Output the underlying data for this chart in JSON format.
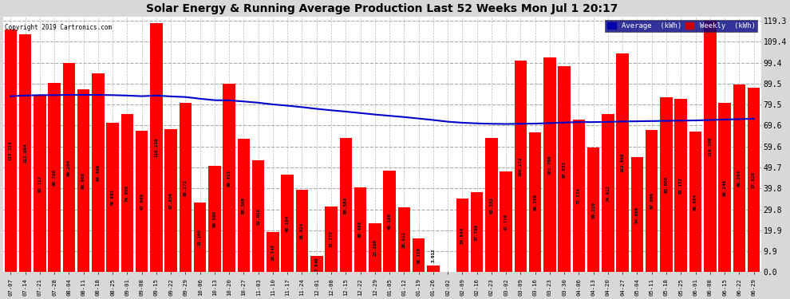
{
  "title": "Solar Energy & Running Average Production Last 52 Weeks Mon Jul 1 20:17",
  "copyright": "Copyright 2019 Cartronics.com",
  "background_color": "#d8d8d8",
  "plot_bg_color": "#ffffff",
  "bar_color": "#ff0000",
  "line_color": "#0000cc",
  "ylabel_right_values": [
    119.3,
    109.4,
    99.4,
    89.5,
    79.5,
    69.6,
    59.6,
    49.7,
    39.8,
    29.8,
    19.9,
    9.9,
    0.0
  ],
  "legend_avg_bg": "#0000aa",
  "legend_weekly_bg": "#cc0000",
  "categories": [
    "07-07",
    "07-14",
    "07-21",
    "07-28",
    "08-04",
    "08-11",
    "08-18",
    "08-25",
    "09-01",
    "09-08",
    "09-15",
    "09-22",
    "09-29",
    "10-06",
    "10-13",
    "10-20",
    "10-27",
    "11-03",
    "11-10",
    "11-17",
    "11-24",
    "12-01",
    "12-08",
    "12-15",
    "12-22",
    "12-29",
    "01-05",
    "01-12",
    "01-19",
    "01-26",
    "02-02",
    "02-09",
    "02-16",
    "02-23",
    "03-02",
    "03-09",
    "03-16",
    "03-23",
    "03-30",
    "04-06",
    "04-13",
    "04-20",
    "04-27",
    "05-04",
    "05-11",
    "05-18",
    "05-25",
    "06-01",
    "06-08",
    "06-15",
    "06-22",
    "06-29"
  ],
  "weekly_values": [
    115.224,
    112.864,
    83.712,
    89.76,
    99.204,
    86.668,
    94.496,
    70.692,
    74.956,
    67.008,
    118.256,
    67.856,
    80.272,
    33.1,
    50.56,
    89.412,
    63.308,
    52.956,
    19.148,
    46.104,
    38.924,
    7.84,
    31.272,
    63.584,
    40.408,
    23.2,
    48.16,
    30.912,
    16.128,
    3.012,
    0.0,
    34.944,
    37.796,
    63.552,
    47.776,
    100.272,
    66.208,
    101.78,
    97.632,
    72.224,
    59.22,
    74.912,
    103.908,
    54.668,
    67.608,
    83.0,
    82.152,
    66.804,
    119.3,
    80.248,
    89.204,
    87.62
  ],
  "avg_values": [
    83.5,
    83.8,
    84.0,
    84.0,
    84.1,
    84.1,
    84.1,
    84.0,
    83.8,
    83.5,
    83.8,
    83.4,
    83.1,
    82.3,
    81.6,
    81.5,
    81.0,
    80.4,
    79.6,
    79.0,
    78.3,
    77.5,
    76.8,
    76.2,
    75.5,
    74.8,
    74.2,
    73.6,
    72.9,
    72.2,
    71.4,
    70.9,
    70.6,
    70.4,
    70.3,
    70.4,
    70.5,
    70.7,
    71.0,
    71.2,
    71.2,
    71.3,
    71.5,
    71.6,
    71.7,
    71.8,
    71.9,
    72.0,
    72.2,
    72.4,
    72.6,
    72.8
  ]
}
